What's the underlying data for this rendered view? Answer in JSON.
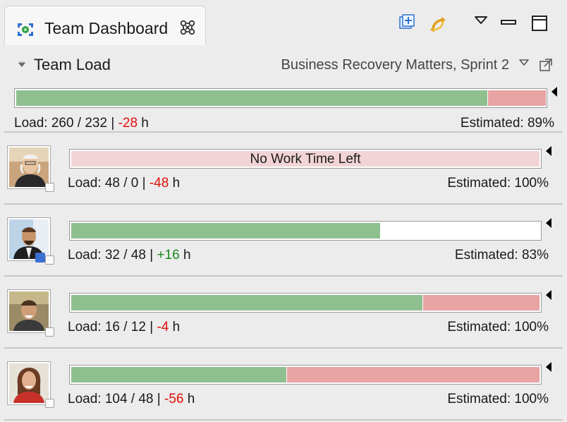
{
  "tab": {
    "title": "Team Dashboard",
    "close_glyph": "⌘"
  },
  "section": {
    "title": "Team Load",
    "sprint": "Business Recovery Matters, Sprint 2"
  },
  "team_summary": {
    "load_prefix": "Load: 260 / 232 | ",
    "delta": "-28",
    "unit": " h",
    "estimated": "Estimated: 89%",
    "green_fraction": 0.89,
    "red_fraction": 0.11
  },
  "members": [
    {
      "bar_text": "No Work Time Left",
      "load_prefix": "Load: 48 / 0 | ",
      "delta": "-48",
      "unit": " h",
      "estimated": "Estimated: 100%",
      "green_fraction": 0,
      "red_fraction": 1
    },
    {
      "bar_text": "",
      "load_prefix": "Load: 32 / 48 | ",
      "delta": "+16",
      "unit": " h",
      "estimated": "Estimated: 83%",
      "green_fraction": 0.66,
      "red_fraction": 0
    },
    {
      "bar_text": "",
      "load_prefix": "Load: 16 / 12 | ",
      "delta": "-4",
      "unit": " h",
      "estimated": "Estimated: 100%",
      "green_fraction": 0.75,
      "red_fraction": 0.25
    },
    {
      "bar_text": "",
      "load_prefix": "Load: 104 / 48 | ",
      "delta": "-56",
      "unit": " h",
      "estimated": "Estimated: 100%",
      "green_fraction": 0.46,
      "red_fraction": 0.54
    }
  ],
  "icons": {
    "tab": "team-dashboard-icon",
    "toolbar": [
      "new-view-icon",
      "synchronize-icon",
      "view-menu-icon",
      "minimize-icon",
      "maximize-icon"
    ],
    "section": [
      "collapse-twisty-icon",
      "dropdown-icon",
      "popout-icon"
    ]
  },
  "colors": {
    "load_bar_green": "#8fbf8f",
    "load_bar_red": "#e8a3a3",
    "no_time_left_bar": "#f2d4d6",
    "overload_text": "#e0100a",
    "available_text": "#1a8a1a"
  }
}
